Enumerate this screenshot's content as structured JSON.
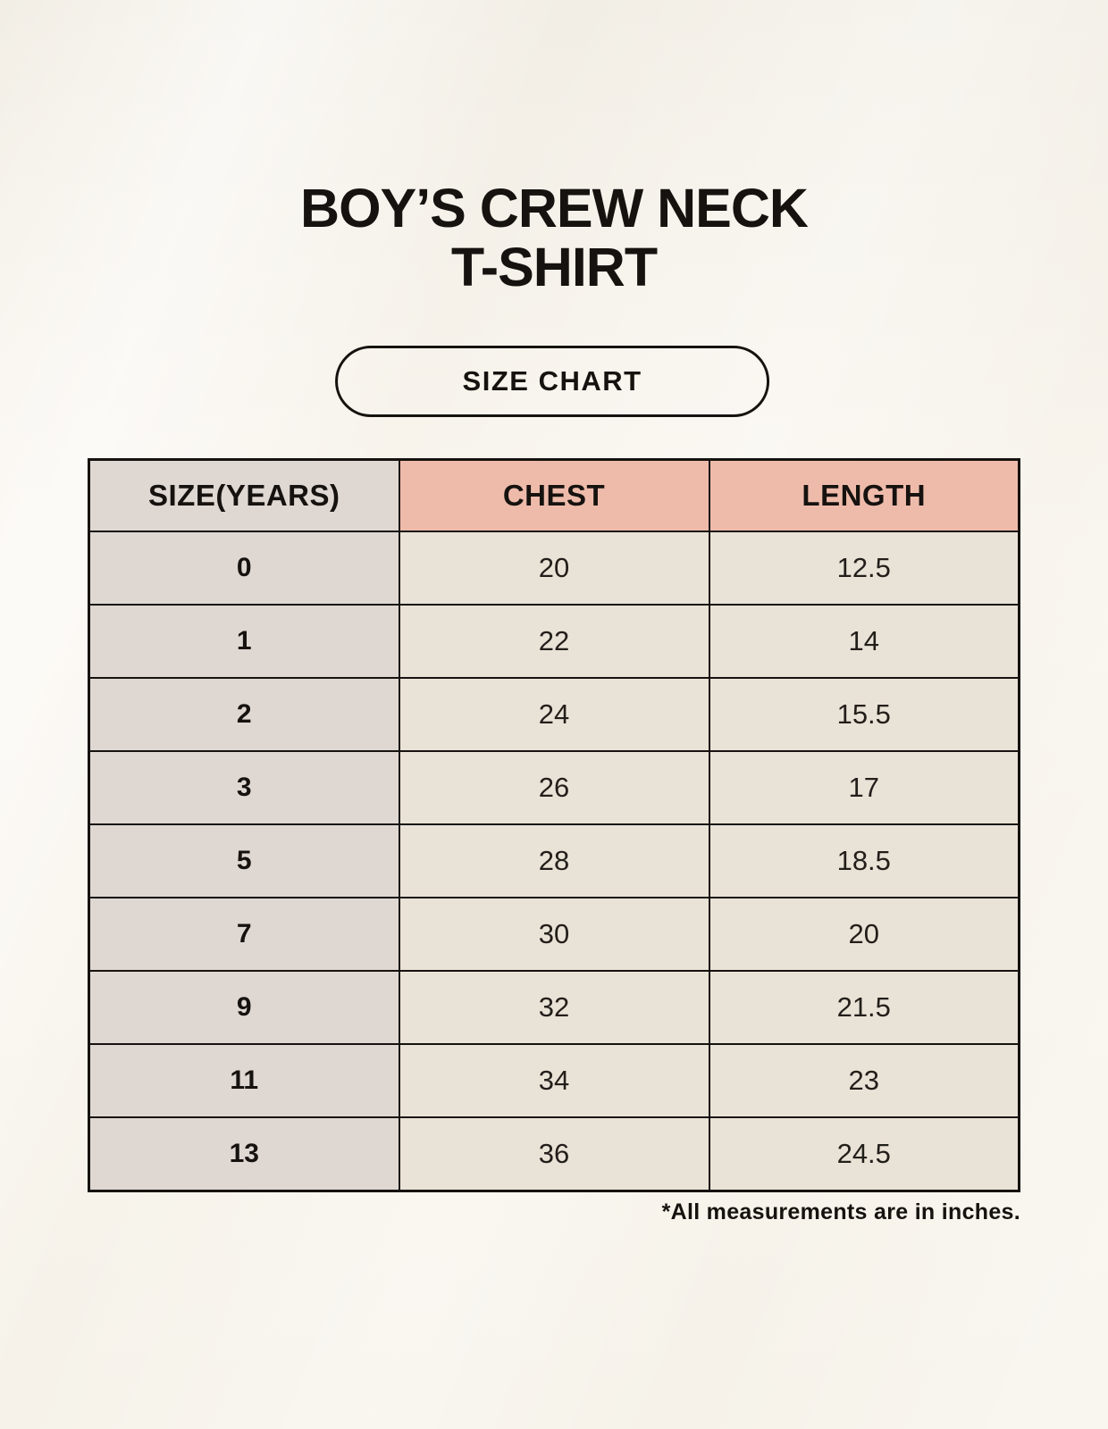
{
  "page": {
    "title_line1": "BOY’S CREW NECK",
    "title_line2": "T-SHIRT",
    "badge_label": "SIZE CHART",
    "footnote": "*All measurements are in inches."
  },
  "chart_data": {
    "type": "table",
    "title": "BOY’S CREW NECK T-SHIRT",
    "subtitle": "SIZE CHART",
    "columns": [
      "SIZE(YEARS)",
      "CHEST",
      "LENGTH"
    ],
    "rows": [
      [
        "0",
        "20",
        "12.5"
      ],
      [
        "1",
        "22",
        "14"
      ],
      [
        "2",
        "24",
        "15.5"
      ],
      [
        "3",
        "26",
        "17"
      ],
      [
        "5",
        "28",
        "18.5"
      ],
      [
        "7",
        "30",
        "20"
      ],
      [
        "9",
        "32",
        "21.5"
      ],
      [
        "11",
        "34",
        "23"
      ],
      [
        "13",
        "36",
        "24.5"
      ]
    ],
    "note": "*All measurements are in inches.",
    "units": "inches"
  },
  "colors": {
    "background": "#f6f2e9",
    "header_accent_pink": "#eebbab",
    "size_column_gray": "#ded7d2",
    "data_cell_cream": "#e9e2d6",
    "table_border": "#16120f",
    "text": "#16120f"
  }
}
